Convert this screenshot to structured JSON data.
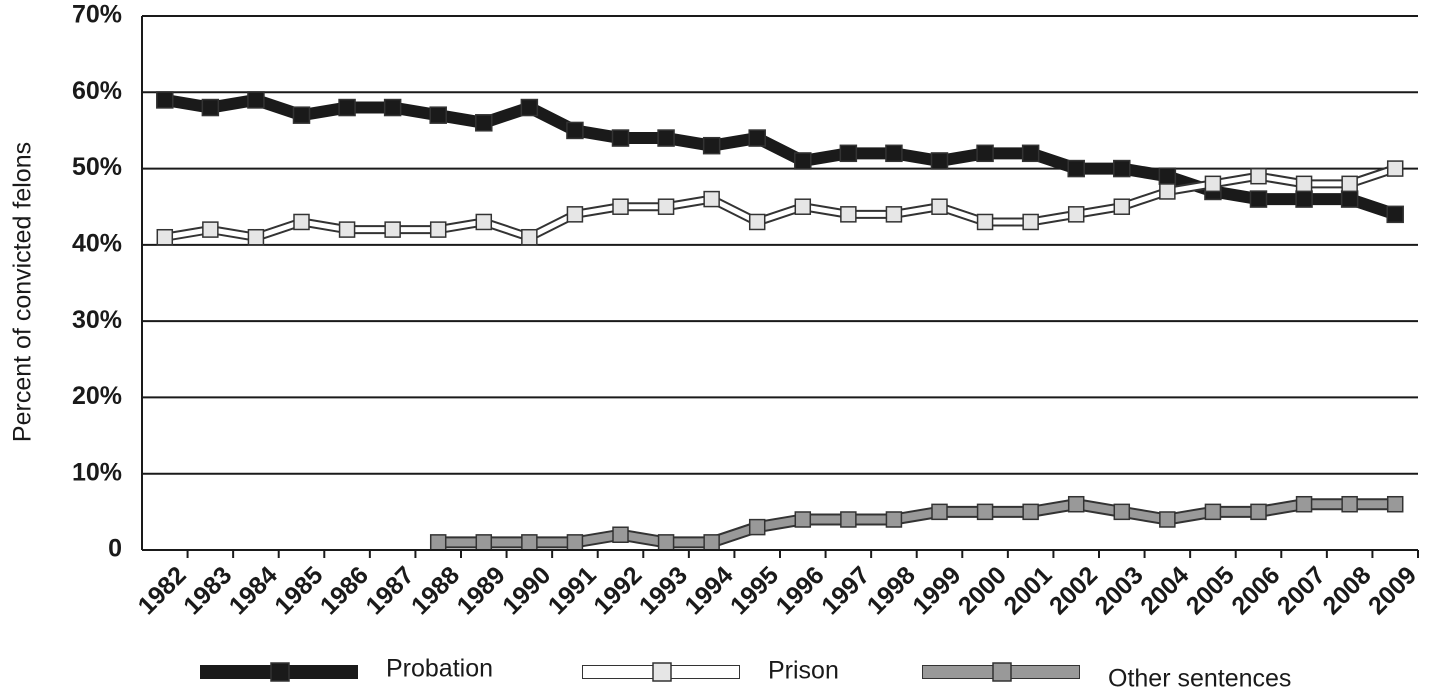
{
  "chart_data": {
    "type": "line",
    "y_label": "Percent of convicted felons",
    "categories": [
      "1982",
      "1983",
      "1984",
      "1985",
      "1986",
      "1987",
      "1988",
      "1989",
      "1990",
      "1991",
      "1992",
      "1993",
      "1994",
      "1995",
      "1996",
      "1997",
      "1998",
      "1999",
      "2000",
      "2001",
      "2002",
      "2003",
      "2004",
      "2005",
      "2006",
      "2007",
      "2008",
      "2009"
    ],
    "series": [
      {
        "name": "Probation",
        "color": "#1a1a1a",
        "values": [
          59,
          58,
          59,
          57,
          58,
          58,
          57,
          56,
          58,
          55,
          54,
          54,
          53,
          54,
          51,
          52,
          52,
          51,
          52,
          52,
          50,
          50,
          49,
          47,
          46,
          46,
          46,
          44
        ]
      },
      {
        "name": "Prison",
        "color": "#e6e6e6",
        "values": [
          41,
          42,
          41,
          43,
          42,
          42,
          42,
          43,
          41,
          44,
          45,
          45,
          46,
          43,
          45,
          44,
          44,
          45,
          43,
          43,
          44,
          45,
          47,
          48,
          49,
          48,
          48,
          50
        ]
      },
      {
        "name": "Other sentences",
        "color": "#999999",
        "values": [
          null,
          null,
          null,
          null,
          null,
          null,
          1,
          1,
          1,
          1,
          2,
          1,
          1,
          3,
          4,
          4,
          4,
          5,
          5,
          5,
          6,
          5,
          4,
          5,
          5,
          6,
          6,
          6
        ]
      }
    ],
    "ylim": [
      0,
      70
    ],
    "yticks": [
      0,
      {
        "value": 10,
        "label": "10%"
      },
      {
        "value": 20,
        "label": "20%"
      },
      {
        "value": 30,
        "label": "30%"
      },
      {
        "value": 40,
        "label": "40%"
      },
      {
        "value": 50,
        "label": "50%"
      },
      {
        "value": 60,
        "label": "60%"
      },
      {
        "value": 70,
        "label": "70%"
      }
    ],
    "grid": true
  }
}
